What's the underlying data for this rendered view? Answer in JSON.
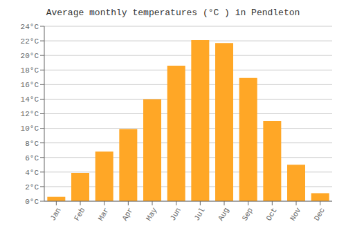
{
  "chart_data": {
    "type": "bar",
    "title": "Average monthly temperatures (°C ) in Pendleton",
    "categories": [
      "Jan",
      "Feb",
      "Mar",
      "Apr",
      "May",
      "Jun",
      "Jul",
      "Aug",
      "Sep",
      "Oct",
      "Nov",
      "Dec"
    ],
    "values": [
      0.6,
      3.9,
      6.8,
      9.9,
      14.0,
      18.6,
      22.1,
      21.7,
      16.9,
      11.0,
      5.0,
      1.1
    ],
    "color": "#FFA726",
    "ylim": [
      0,
      24
    ],
    "yticks": [
      {
        "value": 0,
        "label": "0°C"
      },
      {
        "value": 2,
        "label": "2°C"
      },
      {
        "value": 4,
        "label": "4°C"
      },
      {
        "value": 6,
        "label": "6°C"
      },
      {
        "value": 8,
        "label": "8°C"
      },
      {
        "value": 10,
        "label": "10°C"
      },
      {
        "value": 12,
        "label": "12°C"
      },
      {
        "value": 14,
        "label": "14°C"
      },
      {
        "value": 16,
        "label": "16°C"
      },
      {
        "value": 18,
        "label": "18°C"
      },
      {
        "value": 20,
        "label": "20°C"
      },
      {
        "value": 22,
        "label": "22°C"
      },
      {
        "value": 24,
        "label": "24°C"
      }
    ],
    "grid": true
  }
}
